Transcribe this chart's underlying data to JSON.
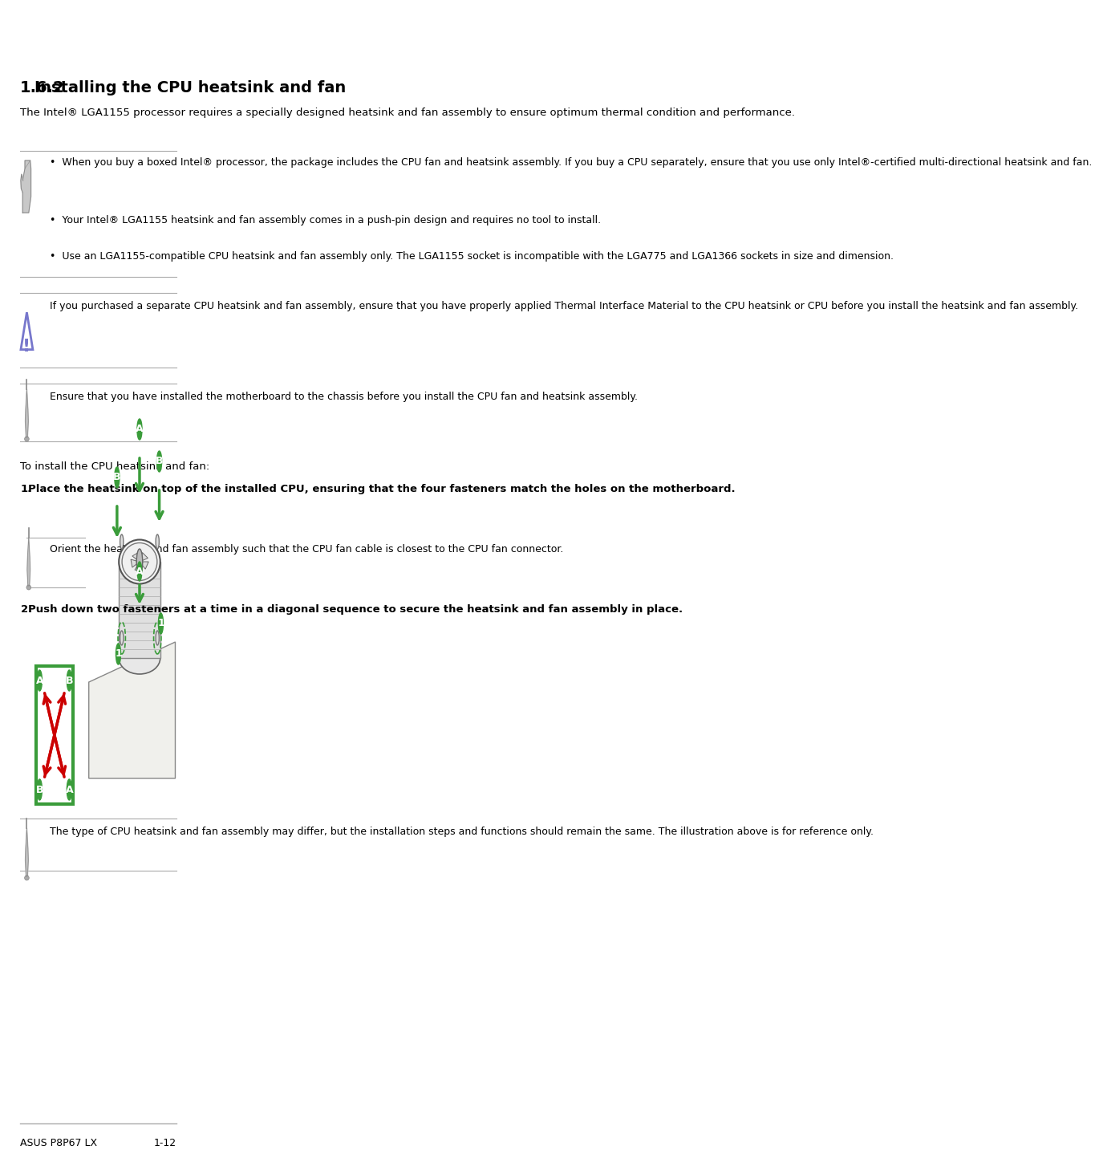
{
  "bg_color": "#ffffff",
  "footer_left": "ASUS P8P67 LX",
  "footer_right": "1-12",
  "section_number": "1.6.2",
  "section_title": "Installing the CPU heatsink and fan",
  "section_intro": "The Intel® LGA1155 processor requires a specially designed heatsink and fan assembly to ensure optimum thermal condition and performance.",
  "bullet1": "When you buy a boxed Intel® processor, the package includes the CPU fan and heatsink assembly. If you buy a CPU separately, ensure that you use only Intel®-certified multi-directional heatsink and fan.",
  "bullet2": "Your Intel® LGA1155 heatsink and fan assembly comes in a push-pin design and requires no tool to install.",
  "bullet3": "Use an LGA1155-compatible CPU heatsink and fan assembly only. The LGA1155 socket is incompatible with the LGA775 and LGA1366 sockets in size and dimension.",
  "caution_text": "If you purchased a separate CPU heatsink and fan assembly, ensure that you have properly applied Thermal Interface Material to the CPU heatsink or CPU before you install the heatsink and fan assembly.",
  "note2_text": "Ensure that you have installed the motherboard to the chassis before you install the CPU fan and heatsink assembly.",
  "install_intro": "To install the CPU heatsink and fan:",
  "step1_text": "Place the heatsink on top of the installed CPU, ensuring that the four fasteners match the holes on the motherboard.",
  "step1_note": "Orient the heatsink and fan assembly such that the CPU fan cable is closest to the CPU fan connector.",
  "step2_text": "Push down two fasteners at a time in a diagonal sequence to secure the heatsink and fan assembly in place.",
  "step2_note": "The type of CPU heatsink and fan assembly may differ, but the installation steps and functions should remain the same. The illustration above is for reference only.",
  "line_color": "#aaaaaa",
  "text_color": "#000000",
  "green_label": "#3a9c3a",
  "red_arrow": "#cc0000",
  "tri_color": "#7777cc"
}
